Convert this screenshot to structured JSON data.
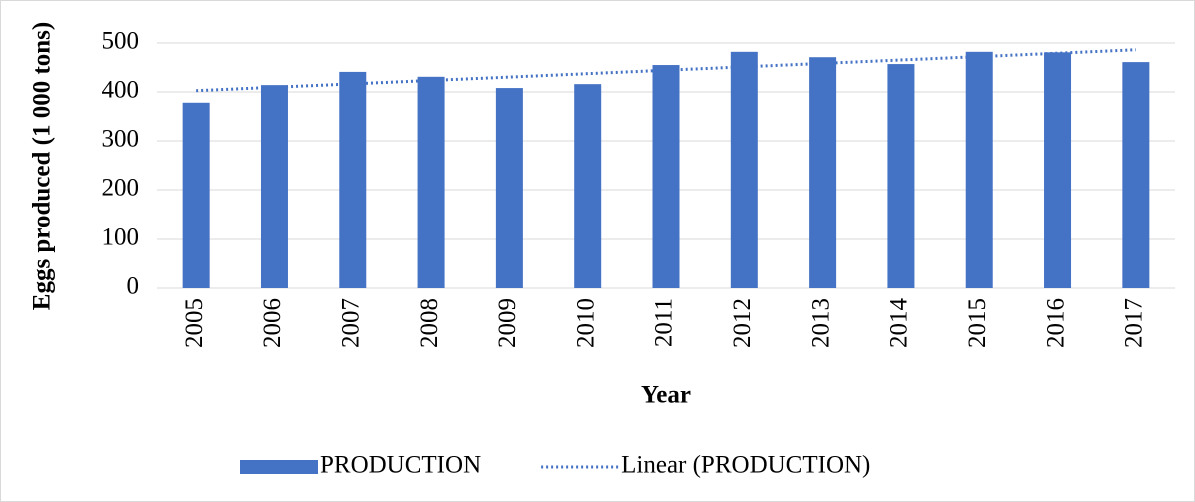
{
  "chart_data": {
    "type": "bar",
    "y_label": "Eggs produced (1 000 tons)",
    "x_label": "Year",
    "categories": [
      "2005",
      "2006",
      "2007",
      "2008",
      "2009",
      "2010",
      "2011",
      "2012",
      "2013",
      "2014",
      "2015",
      "2016",
      "2017"
    ],
    "series": [
      {
        "name": "PRODUCTION",
        "color": "#4472c4",
        "values": [
          378,
          414,
          441,
          431,
          408,
          416,
          455,
          482,
          471,
          457,
          482,
          481,
          461
        ]
      },
      {
        "name": "Linear (PRODUCTION)",
        "type": "line",
        "color": "#4472c4",
        "values": [
          402.6,
          409.6,
          416.5,
          423.5,
          430.4,
          437.4,
          444.4,
          451.3,
          458.3,
          465.3,
          472.2,
          479.2,
          486.2
        ]
      }
    ],
    "ylim": [
      0,
      500
    ],
    "yticks": [
      0,
      100,
      200,
      300,
      400,
      500
    ],
    "grid": true
  }
}
